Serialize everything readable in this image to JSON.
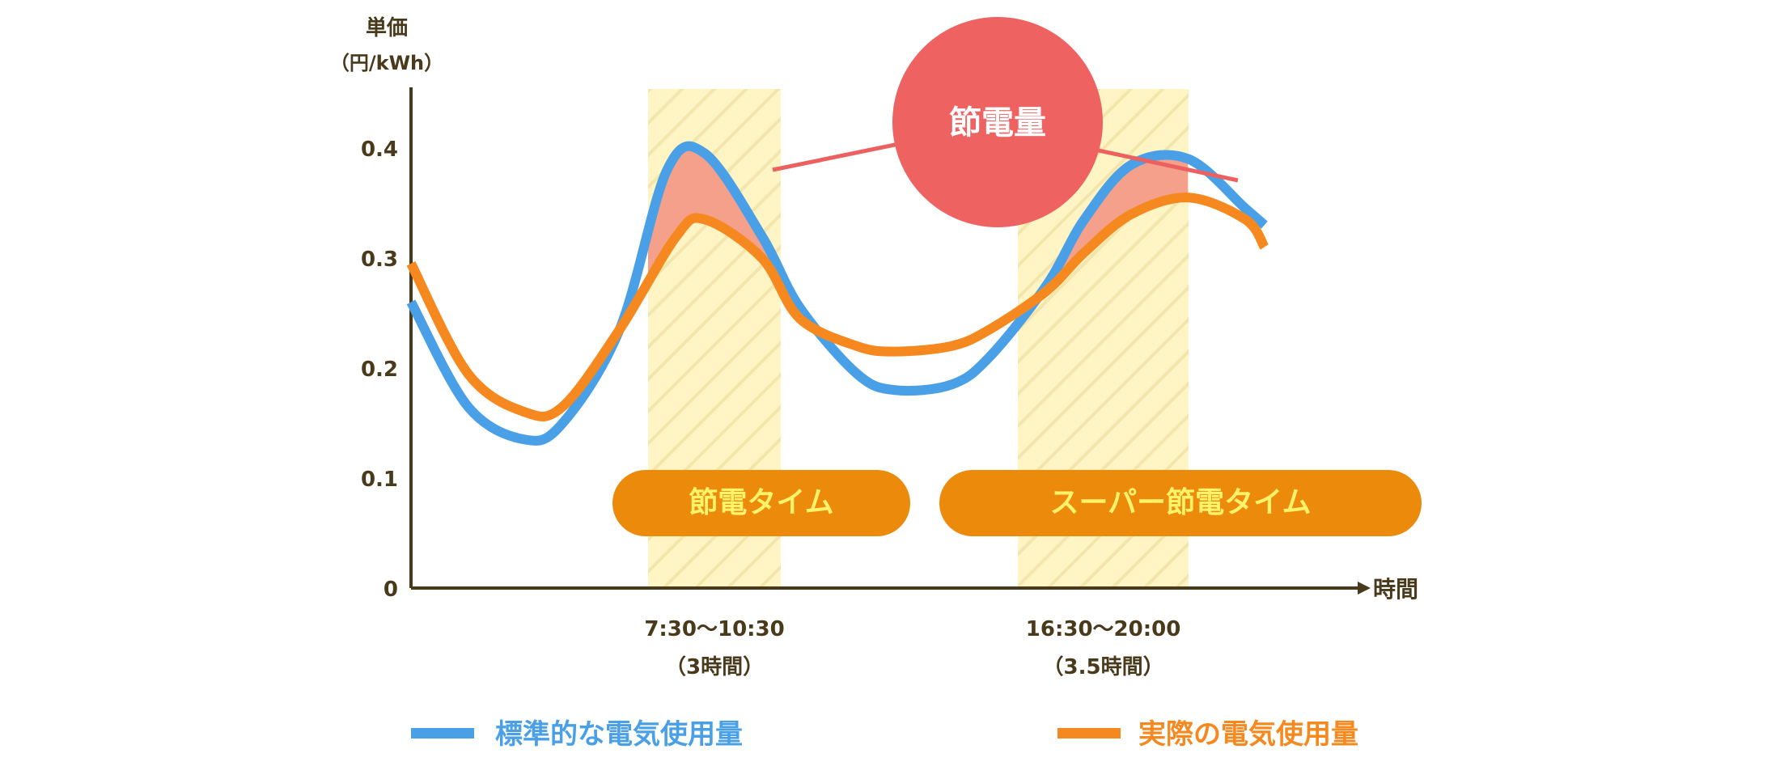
{
  "chart_data": {
    "type": "line",
    "ylabel_line1": "単価",
    "ylabel_line2": "（円/kWh）",
    "xlabel": "時間",
    "ylim": [
      0,
      0.45
    ],
    "yticks": [
      "0",
      "0.1",
      "0.2",
      "0.3",
      "0.4"
    ],
    "ytick_values": [
      0,
      0.1,
      0.2,
      0.3,
      0.4
    ],
    "x_ticks": {
      "ticks": [
        {
          "time": "7:30〜10:30",
          "duration": "（3時間）"
        },
        {
          "time": "16:30〜20:00",
          "duration": "（3.5時間）"
        }
      ]
    },
    "series": [
      {
        "name": "標準的な電気使用量",
        "color": "#4aa0e6",
        "values": [
          [
            0,
            0.26
          ],
          [
            0.06,
            0.165
          ],
          [
            0.12,
            0.135
          ],
          [
            0.16,
            0.15
          ],
          [
            0.22,
            0.235
          ],
          [
            0.27,
            0.38
          ],
          [
            0.31,
            0.395
          ],
          [
            0.37,
            0.32
          ],
          [
            0.41,
            0.255
          ],
          [
            0.47,
            0.195
          ],
          [
            0.51,
            0.18
          ],
          [
            0.57,
            0.185
          ],
          [
            0.61,
            0.21
          ],
          [
            0.67,
            0.275
          ],
          [
            0.71,
            0.335
          ],
          [
            0.76,
            0.385
          ],
          [
            0.82,
            0.39
          ],
          [
            0.88,
            0.345
          ],
          [
            0.9,
            0.33
          ]
        ]
      },
      {
        "name": "実際の電気使用量",
        "color": "#f5891f",
        "values": [
          [
            0,
            0.295
          ],
          [
            0.06,
            0.195
          ],
          [
            0.12,
            0.16
          ],
          [
            0.16,
            0.165
          ],
          [
            0.22,
            0.235
          ],
          [
            0.28,
            0.32
          ],
          [
            0.31,
            0.335
          ],
          [
            0.37,
            0.3
          ],
          [
            0.41,
            0.245
          ],
          [
            0.47,
            0.22
          ],
          [
            0.51,
            0.215
          ],
          [
            0.57,
            0.22
          ],
          [
            0.61,
            0.235
          ],
          [
            0.67,
            0.27
          ],
          [
            0.71,
            0.305
          ],
          [
            0.76,
            0.34
          ],
          [
            0.82,
            0.355
          ],
          [
            0.88,
            0.335
          ],
          [
            0.9,
            0.31
          ]
        ]
      }
    ],
    "highlight_bands": [
      {
        "label": "節電タイム",
        "start": 0.25,
        "end": 0.39
      },
      {
        "label": "スーパー節電タイム",
        "start": 0.64,
        "end": 0.82
      }
    ],
    "annotation": "節電量",
    "legend": [
      "標準的な電気使用量",
      "実際の電気使用量"
    ],
    "legend_position": "bottom",
    "grid": false
  }
}
